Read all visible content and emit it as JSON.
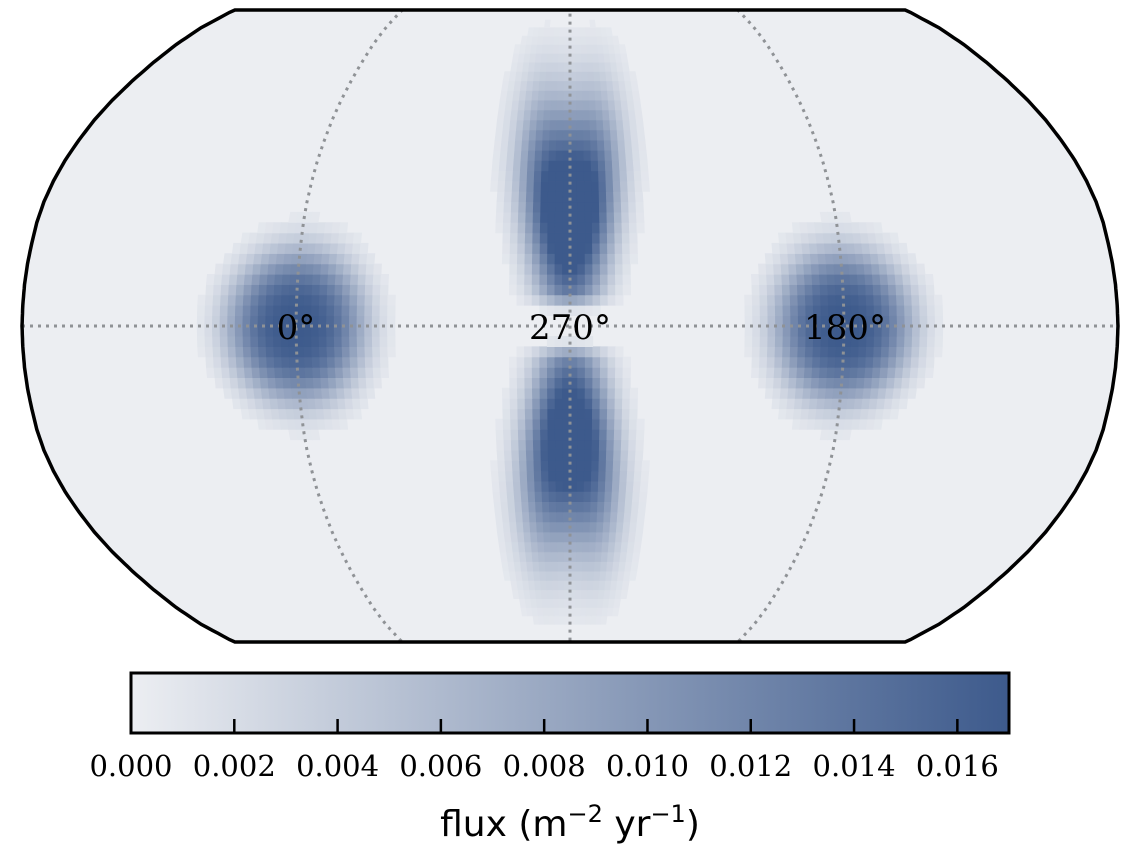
{
  "chart_data": {
    "type": "heatmap",
    "projection": "Robinson (all-sky)",
    "grid": true,
    "meridian_labels": [
      "0°",
      "270°",
      "180°"
    ],
    "colorbar": {
      "label": "flux (m⁻² yr⁻¹)",
      "label_main": "flux (m",
      "label_exp1": "−2",
      "label_mid": " yr",
      "label_exp2": "−1",
      "label_close": ")",
      "range": [
        0,
        0.017
      ],
      "ticks": [
        0.0,
        0.002,
        0.004,
        0.006,
        0.008,
        0.01,
        0.012,
        0.014,
        0.016
      ],
      "tick_labels": [
        "0.000",
        "0.002",
        "0.004",
        "0.006",
        "0.008",
        "0.010",
        "0.012",
        "0.014",
        "0.016"
      ],
      "color_low": "#eceef2",
      "color_high": "#3d5a8c"
    },
    "hotspots": [
      {
        "description": "lobe near 0°",
        "lon_deg": 0,
        "lat_deg": 0,
        "peak_flux": 0.017
      },
      {
        "description": "lobe near 180°",
        "lon_deg": 180,
        "lat_deg": 0,
        "peak_flux": 0.017
      },
      {
        "description": "upper arms near 270°",
        "lon_deg": 270,
        "lat_deg": 25,
        "peak_flux": 0.016
      },
      {
        "description": "lower arms near 270°",
        "lon_deg": 270,
        "lat_deg": -25,
        "peak_flux": 0.015
      }
    ]
  },
  "colors": {
    "background_map": "#eceef2",
    "grid_line": "#8f9296",
    "outline": "#000000"
  }
}
